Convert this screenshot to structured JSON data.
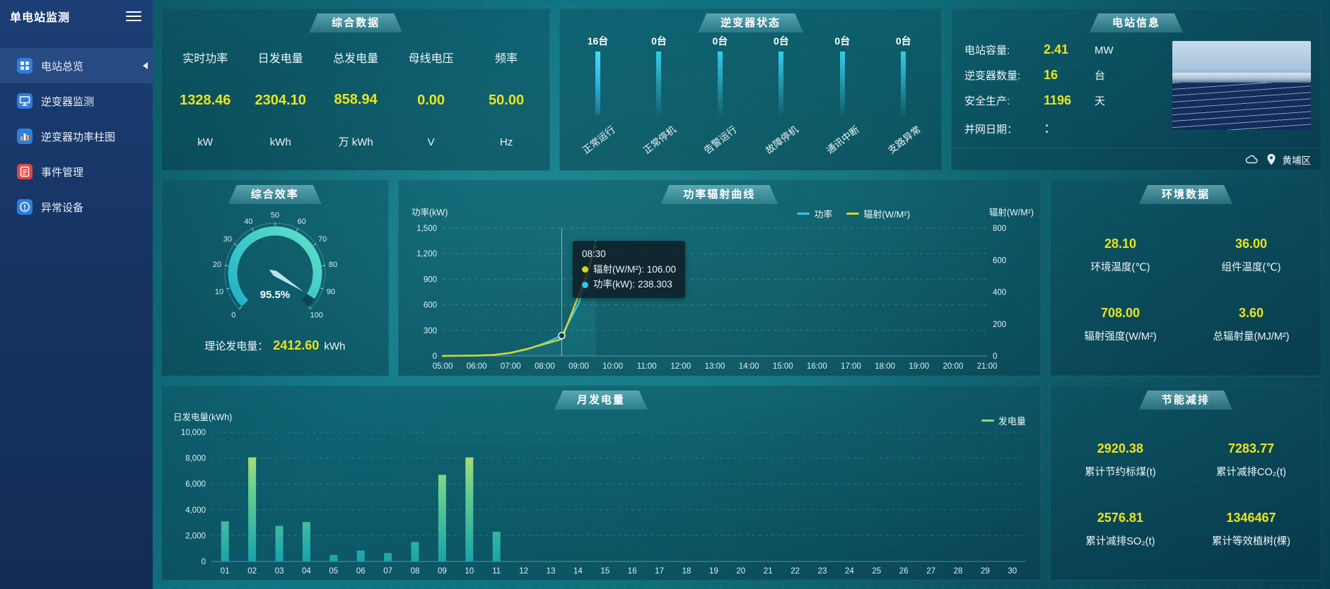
{
  "app_title": "单电站监测",
  "sidebar": {
    "items": [
      {
        "label": "电站总览",
        "icon": "overview-grid",
        "active": true
      },
      {
        "label": "逆变器监测",
        "icon": "inverter-monitor",
        "active": false
      },
      {
        "label": "逆变器功率柱图",
        "icon": "power-bar-chart",
        "active": false
      },
      {
        "label": "事件管理",
        "icon": "event-management",
        "active": false
      },
      {
        "label": "异常设备",
        "icon": "abnormal-device",
        "active": false
      }
    ]
  },
  "summary": {
    "title": "综合数据",
    "metrics": [
      {
        "label": "实时功率",
        "value": "1328.46",
        "unit": "kW"
      },
      {
        "label": "日发电量",
        "value": "2304.10",
        "unit": "kWh"
      },
      {
        "label": "总发电量",
        "value": "858.94",
        "unit": "万 kWh"
      },
      {
        "label": "母线电压",
        "value": "0.00",
        "unit": "V"
      },
      {
        "label": "频率",
        "value": "50.00",
        "unit": "Hz"
      }
    ]
  },
  "inverter_status": {
    "title": "逆变器状态",
    "items": [
      {
        "count": "16台",
        "label": "正常运行"
      },
      {
        "count": "0台",
        "label": "正常停机"
      },
      {
        "count": "0台",
        "label": "告警运行"
      },
      {
        "count": "0台",
        "label": "故障停机"
      },
      {
        "count": "0台",
        "label": "通讯中断"
      },
      {
        "count": "0台",
        "label": "支路异常"
      }
    ]
  },
  "station_info": {
    "title": "电站信息",
    "rows": [
      {
        "label": "电站容量:",
        "value": "2.41",
        "unit": "MW"
      },
      {
        "label": "逆变器数量:",
        "value": "16",
        "unit": "台"
      },
      {
        "label": "安全生产:",
        "value": "1196",
        "unit": "天"
      },
      {
        "label": "并网日期：",
        "value": "：",
        "unit": ""
      }
    ],
    "location": "黄埔区"
  },
  "efficiency": {
    "title": "综合效率",
    "theory_label": "理论发电量：",
    "theory_value": "2412.60",
    "theory_unit": "kWh"
  },
  "power_curve": {
    "title": "功率辐射曲线",
    "legend": [
      {
        "label": "功率",
        "color": "#2fc8e8"
      },
      {
        "label": "辐射(W/M²)",
        "color": "#d8d32a"
      }
    ],
    "tooltip": {
      "time": "08:30",
      "rows": [
        {
          "color": "#d8d32a",
          "text": "辐射(W/M²): 106.00"
        },
        {
          "color": "#2fc8e8",
          "text": "功率(kW): 238.303"
        }
      ]
    }
  },
  "environment": {
    "title": "环境数据",
    "metrics": [
      {
        "value": "28.10",
        "label": "环境温度(℃)"
      },
      {
        "value": "36.00",
        "label": "组件温度(℃)"
      },
      {
        "value": "708.00",
        "label": "辐射强度(W/M²)"
      },
      {
        "value": "3.60",
        "label": "总辐射量(MJ/M²)"
      }
    ]
  },
  "monthly": {
    "title": "月发电量",
    "legend": "发电量",
    "legend_color": "#7fdc88"
  },
  "savings": {
    "title": "节能减排",
    "metrics": [
      {
        "value": "2920.38",
        "label": "累计节约标煤(t)"
      },
      {
        "value": "7283.77",
        "label": "累计减排CO₂(t)"
      },
      {
        "value": "2576.81",
        "label": "累计减排SO₂(t)"
      },
      {
        "value": "1346467",
        "label": "累计等效植树(棵)"
      }
    ]
  },
  "chart_data": [
    {
      "id": "inverter_status",
      "type": "bar",
      "title": "逆变器状态",
      "categories": [
        "正常运行",
        "正常停机",
        "告警运行",
        "故障停机",
        "通讯中断",
        "支路异常"
      ],
      "values": [
        16,
        0,
        0,
        0,
        0,
        0
      ],
      "unit": "台"
    },
    {
      "id": "efficiency_gauge",
      "type": "gauge",
      "value": 95.5,
      "min": 0,
      "max": 100,
      "ticks": [
        0,
        10,
        20,
        30,
        40,
        50,
        60,
        70,
        80,
        90,
        100
      ],
      "label": "95.5%"
    },
    {
      "id": "power_radiation_curve",
      "type": "line",
      "title": "功率辐射曲线",
      "x_range": [
        5,
        21
      ],
      "x_ticks": [
        "05:00",
        "06:00",
        "07:00",
        "08:00",
        "09:00",
        "10:00",
        "11:00",
        "12:00",
        "13:00",
        "14:00",
        "15:00",
        "16:00",
        "17:00",
        "18:00",
        "19:00",
        "20:00",
        "21:00"
      ],
      "y_left": {
        "label": "功率(kW)",
        "min": 0,
        "max": 1500,
        "ticks": [
          0,
          300,
          600,
          900,
          1200,
          1500
        ]
      },
      "y_right": {
        "label": "辐射(W/M²)",
        "min": 0,
        "max": 800,
        "ticks": [
          0,
          200,
          400,
          600,
          800
        ]
      },
      "series": [
        {
          "name": "功率",
          "axis": "left",
          "color": "#2fc8e8",
          "x": [
            5,
            5.5,
            6,
            6.5,
            7,
            7.5,
            8,
            8.5,
            9,
            9.25,
            9.5
          ],
          "values": [
            0,
            2,
            5,
            12,
            35,
            80,
            150,
            238.303,
            620,
            950,
            1350
          ]
        },
        {
          "name": "辐射(W/M²)",
          "axis": "right",
          "color": "#d8d32a",
          "x": [
            5,
            5.5,
            6,
            6.5,
            7,
            7.5,
            8,
            8.5,
            9,
            9.25,
            9.5
          ],
          "values": [
            0,
            1,
            2,
            6,
            20,
            45,
            75,
            106,
            380,
            520,
            690
          ]
        }
      ],
      "marker": {
        "x": 8.5
      },
      "legend_position": "top"
    },
    {
      "id": "monthly_energy",
      "type": "bar",
      "title": "月发电量",
      "ylabel": "日发电量(kWh)",
      "ylim": [
        0,
        10000
      ],
      "yticks": [
        0,
        2000,
        4000,
        6000,
        8000,
        10000
      ],
      "categories": [
        "01",
        "02",
        "03",
        "04",
        "05",
        "06",
        "07",
        "08",
        "09",
        "10",
        "11",
        "12",
        "13",
        "14",
        "15",
        "16",
        "17",
        "18",
        "19",
        "20",
        "21",
        "22",
        "23",
        "24",
        "25",
        "26",
        "27",
        "28",
        "29",
        "30"
      ],
      "values": [
        3100,
        8050,
        2750,
        3050,
        500,
        850,
        650,
        1500,
        6700,
        8050,
        2300,
        0,
        0,
        0,
        0,
        0,
        0,
        0,
        0,
        0,
        0,
        0,
        0,
        0,
        0,
        0,
        0,
        0,
        0,
        0
      ],
      "legend": "发电量"
    }
  ]
}
